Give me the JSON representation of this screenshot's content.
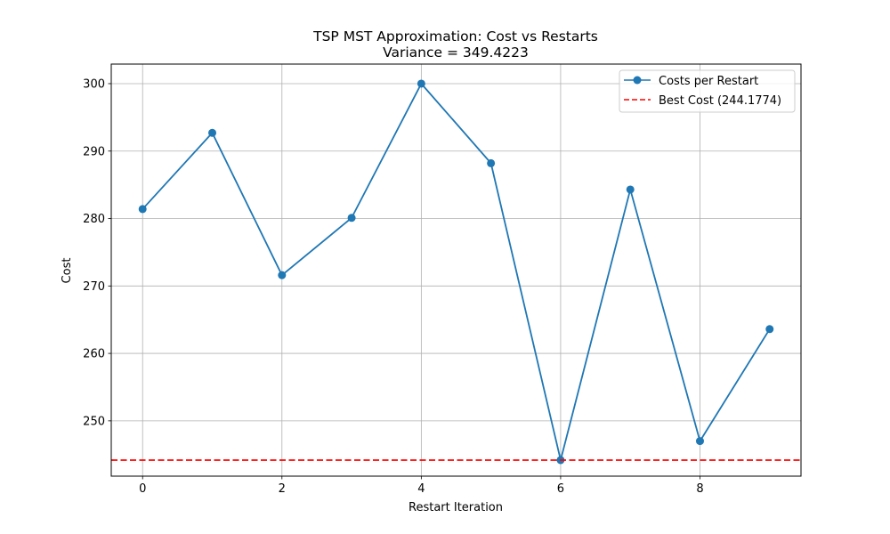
{
  "chart_data": {
    "type": "line",
    "title": "TSP MST Approximation: Cost vs Restarts",
    "subtitle": "Variance = 349.4223",
    "xlabel": "Restart Iteration",
    "ylabel": "Cost",
    "xlim": [
      -0.45,
      9.45
    ],
    "ylim": [
      241.8,
      302.9
    ],
    "x_ticks": [
      0,
      2,
      4,
      6,
      8
    ],
    "y_ticks": [
      250,
      260,
      270,
      280,
      290,
      300
    ],
    "grid": true,
    "legend_position": "top-right",
    "series": [
      {
        "name": "Costs per Restart",
        "style": "line-marker",
        "color": "#1f77b4",
        "x": [
          0,
          1,
          2,
          3,
          4,
          5,
          6,
          7,
          8,
          9
        ],
        "values": [
          281.4,
          292.7,
          271.6,
          280.1,
          300.0,
          288.2,
          244.18,
          284.3,
          247.0,
          263.6
        ]
      },
      {
        "name": "Best Cost (244.1774)",
        "style": "dashed-hline",
        "color": "#ff0000",
        "value": 244.1774
      }
    ]
  }
}
